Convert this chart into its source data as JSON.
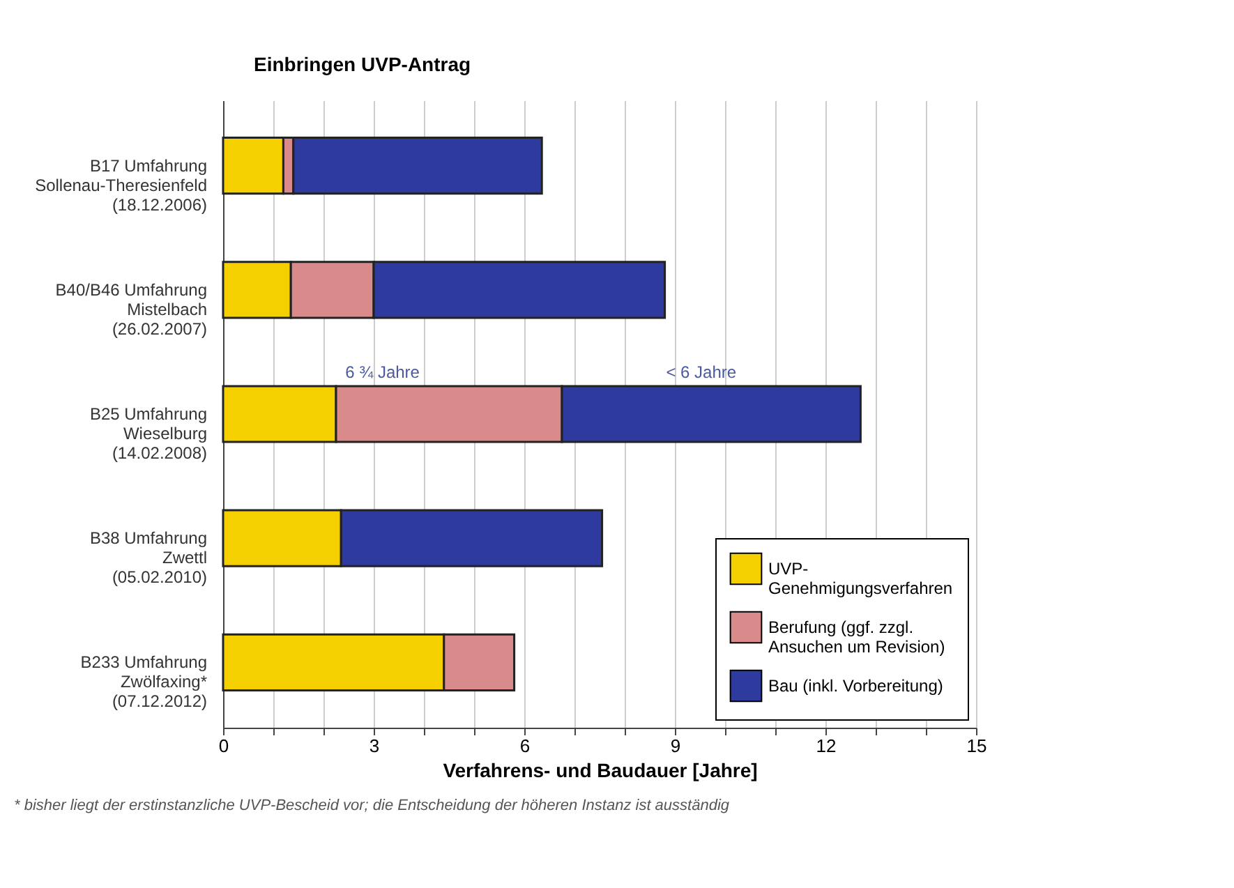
{
  "chart_data": {
    "type": "bar",
    "orientation": "horizontal",
    "stacked": true,
    "categories": [
      "B17 Umfahrung Sollenau-Theresienfeld (18.12.2006)",
      "B40/B46 Umfahrung Mistelbach (26.02.2007)",
      "B25 Umfahrung Wieselburg (14.02.2008)",
      "B38 Umfahrung Zwettl (05.02.2010)",
      "B233 Umfahrung Zwölfaxing* (07.12.2012)"
    ],
    "series": [
      {
        "name": "UVP-Genehmigungsverfahren",
        "color": "#f5d000",
        "values": [
          1.2,
          1.35,
          2.25,
          2.35,
          4.4
        ]
      },
      {
        "name": "Berufung (ggf. zzgl. Ansuchen um Revision)",
        "color": "#d98a8a",
        "values": [
          0.2,
          1.65,
          4.5,
          null,
          1.4
        ]
      },
      {
        "name": "Bau (inkl. Vorbereitung)",
        "color": "#2e3a9e",
        "values": [
          4.95,
          5.8,
          5.95,
          5.2,
          null
        ]
      }
    ],
    "xlabel": "Verfahrens- und Baudauer [Jahre]",
    "xlim": [
      0,
      15
    ],
    "xticks": [
      0,
      {
        "value": 1,
        "label": null
      },
      {
        "value": 2,
        "label": null
      },
      3,
      {
        "value": 4,
        "label": null
      },
      {
        "value": 5,
        "label": null
      },
      6,
      {
        "value": 7,
        "label": null
      },
      {
        "value": 8,
        "label": null
      },
      9,
      {
        "value": 10,
        "label": null
      },
      {
        "value": 11,
        "label": null
      },
      12,
      {
        "value": 13,
        "label": null
      },
      {
        "value": 14,
        "label": null
      },
      15
    ],
    "grid": "x",
    "legend": "bottom right",
    "annotations": [
      "Einbringen UVP-Antrag",
      "6 ¾ Jahre",
      "< 6 Jahre",
      "* bisher liegt der erstinstanzliche UVP-Bescheid vor; die Entscheidung der höheren Instanz ist ausständig"
    ]
  }
}
